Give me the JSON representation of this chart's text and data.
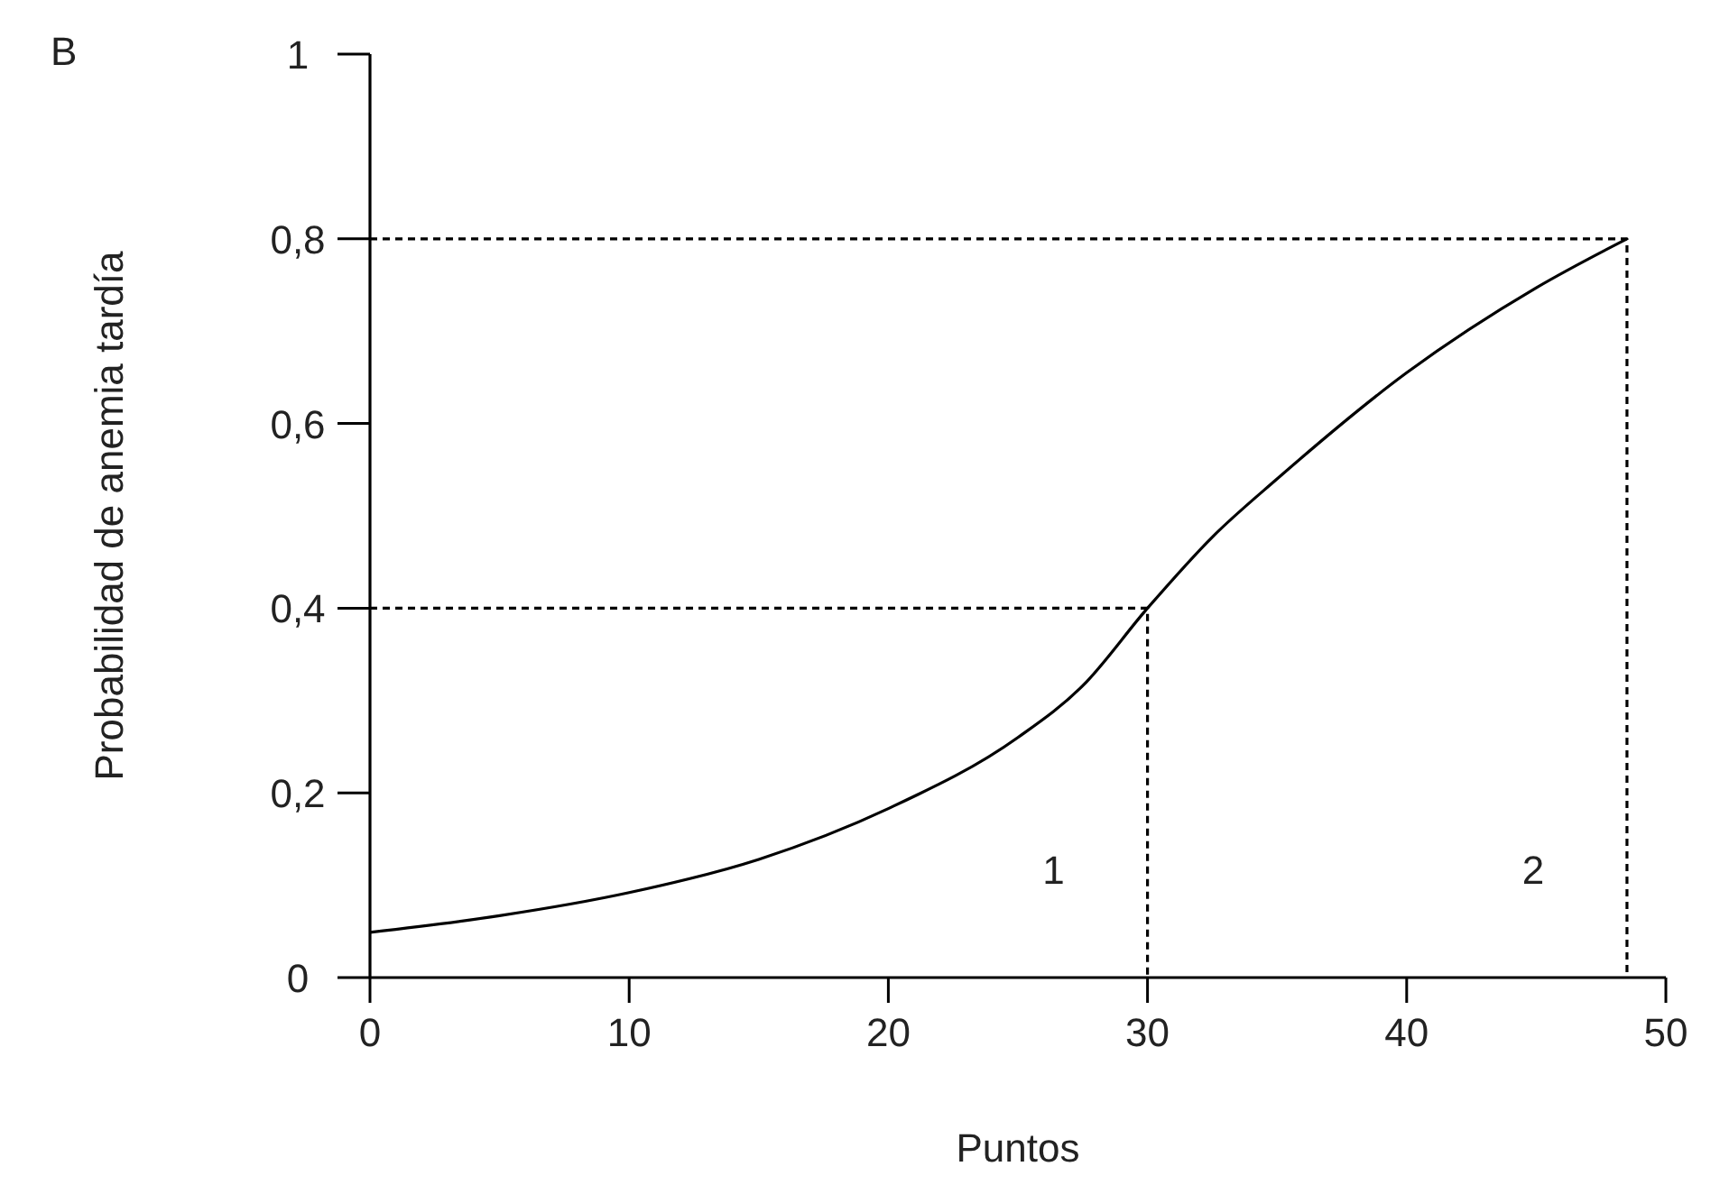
{
  "chart_data": {
    "type": "line",
    "title": "B",
    "xlabel": "Puntos",
    "ylabel": "Probabilidad de anemia tardía",
    "xlim": [
      0,
      50
    ],
    "xticks": [
      0,
      10,
      20,
      30,
      40,
      50
    ],
    "ylim": [
      0,
      1
    ],
    "yticks": [
      0,
      {
        "value": 0.2,
        "label": "0,2"
      },
      {
        "value": 0.4,
        "label": "0,4"
      },
      {
        "value": 0.6,
        "label": "0,6"
      },
      {
        "value": 0.8,
        "label": "0,8"
      },
      1
    ],
    "grid": false,
    "marker": "none",
    "series": [
      {
        "color": "#000000",
        "line_style": "solid",
        "x": [
          0,
          5,
          10,
          15,
          20,
          25,
          27.5,
          30,
          32.5,
          35,
          40,
          45,
          48.5
        ],
        "values": [
          0.049,
          0.067,
          0.092,
          0.128,
          0.183,
          0.26,
          0.316,
          0.4,
          0.477,
          0.54,
          0.655,
          0.747,
          0.8
        ]
      },
      {
        "color": "#000000",
        "line_style": "dashed",
        "x": [
          0,
          30,
          30
        ],
        "values": [
          0.4,
          0.4,
          0
        ]
      },
      {
        "color": "#000000",
        "line_style": "dashed",
        "x": [
          0,
          48.5,
          48.5
        ],
        "values": [
          0.8,
          0.8,
          0
        ]
      }
    ],
    "annotations": [
      "1",
      "2"
    ]
  }
}
